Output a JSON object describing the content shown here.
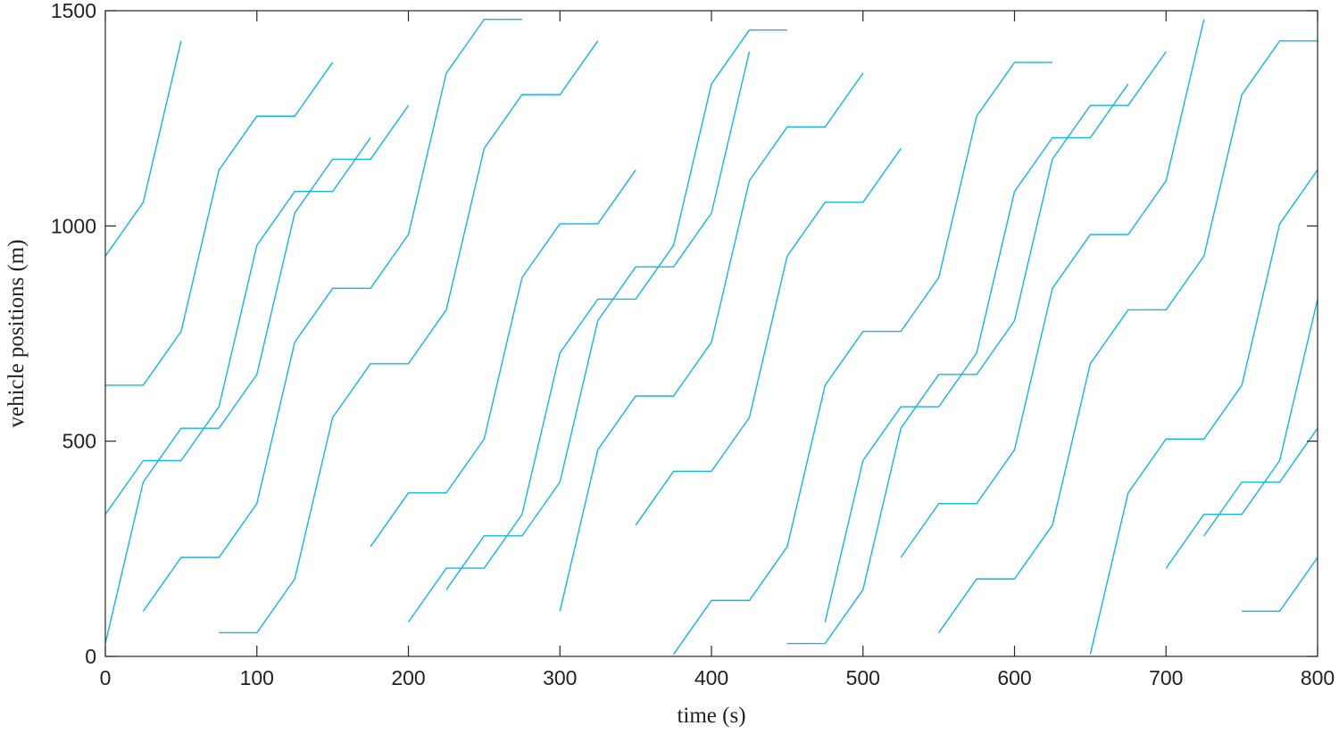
{
  "chart_data": {
    "type": "line",
    "xlabel": "time (s)",
    "ylabel": "vehicle positions (m)",
    "xlim": [
      0,
      800
    ],
    "ylim": [
      0,
      1500
    ],
    "xticks": [
      0,
      100,
      200,
      300,
      400,
      500,
      600,
      700,
      800
    ],
    "yticks": [
      0,
      500,
      1000,
      1500
    ],
    "color": "#16b4e2",
    "series": [
      {
        "x": [
          0,
          25,
          50,
          75,
          100,
          125,
          150,
          175,
          200
        ],
        "values": [
          30,
          405,
          530,
          530,
          655,
          1030,
          1155,
          1155,
          1280
        ]
      },
      {
        "x": [
          225,
          250,
          275,
          300,
          325,
          350,
          375,
          400,
          425
        ],
        "values": [
          155,
          280,
          280,
          405,
          780,
          905,
          905,
          1030,
          1405
        ]
      },
      {
        "x": [
          450,
          475,
          500,
          525,
          550,
          575,
          600,
          625,
          650,
          675,
          700
        ],
        "values": [
          30,
          30,
          155,
          530,
          655,
          655,
          780,
          1155,
          1280,
          1280,
          1405
        ]
      },
      {
        "x": [
          725,
          750,
          775,
          800
        ],
        "values": [
          280,
          405,
          405,
          530
        ]
      },
      {
        "x": [
          0,
          25,
          50,
          75,
          100,
          125,
          150,
          175
        ],
        "values": [
          330,
          455,
          455,
          580,
          955,
          1080,
          1080,
          1205
        ]
      },
      {
        "x": [
          200,
          225,
          250,
          275,
          300,
          325,
          350,
          375,
          400,
          425,
          450
        ],
        "values": [
          80,
          205,
          205,
          330,
          705,
          830,
          830,
          955,
          1330,
          1455,
          1455
        ]
      },
      {
        "x": [
          475,
          500,
          525,
          550,
          575,
          600,
          625,
          650,
          675
        ],
        "values": [
          80,
          455,
          580,
          580,
          705,
          1080,
          1205,
          1205,
          1330
        ]
      },
      {
        "x": [
          700,
          725,
          750,
          775,
          800
        ],
        "values": [
          205,
          330,
          330,
          455,
          830
        ]
      },
      {
        "x": [
          0,
          25,
          50,
          75,
          100,
          125,
          150
        ],
        "values": [
          630,
          630,
          755,
          1130,
          1255,
          1255,
          1380
        ]
      },
      {
        "x": [
          175,
          200,
          225,
          250,
          275,
          300,
          325,
          350
        ],
        "values": [
          255,
          380,
          380,
          505,
          880,
          1005,
          1005,
          1130
        ]
      },
      {
        "x": [
          375,
          400,
          425,
          450,
          475,
          500,
          525,
          550,
          575,
          600,
          625
        ],
        "values": [
          5,
          130,
          130,
          255,
          630,
          755,
          755,
          880,
          1255,
          1380,
          1380
        ]
      },
      {
        "x": [
          650,
          675,
          700,
          725,
          750,
          775,
          800
        ],
        "values": [
          5,
          380,
          505,
          505,
          630,
          1005,
          1130
        ]
      },
      {
        "x": [
          0,
          25,
          50
        ],
        "values": [
          930,
          1055,
          1430
        ]
      },
      {
        "x": [
          75,
          100,
          125,
          150,
          175,
          200,
          225,
          250,
          275,
          300,
          325
        ],
        "values": [
          55,
          55,
          180,
          555,
          680,
          680,
          805,
          1180,
          1305,
          1305,
          1430
        ]
      },
      {
        "x": [
          350,
          375,
          400,
          425,
          450,
          475,
          500,
          525
        ],
        "values": [
          305,
          430,
          430,
          555,
          930,
          1055,
          1055,
          1180
        ]
      },
      {
        "x": [
          550,
          575,
          600,
          625,
          650,
          675,
          700,
          725,
          750,
          775,
          800
        ],
        "values": [
          55,
          180,
          180,
          305,
          680,
          805,
          805,
          930,
          1305,
          1430,
          1430
        ]
      },
      {
        "x": [
          25,
          50,
          75,
          100,
          125,
          150,
          175,
          200,
          225,
          250,
          275
        ],
        "values": [
          105,
          230,
          230,
          355,
          730,
          855,
          855,
          980,
          1355,
          1480,
          1480
        ]
      },
      {
        "x": [
          300,
          325,
          350,
          375,
          400,
          425,
          450,
          475,
          500
        ],
        "values": [
          105,
          480,
          605,
          605,
          730,
          1105,
          1230,
          1230,
          1355
        ]
      },
      {
        "x": [
          525,
          550,
          575,
          600,
          625,
          650,
          675,
          700,
          725
        ],
        "values": [
          230,
          355,
          355,
          480,
          855,
          980,
          980,
          1105,
          1480
        ]
      },
      {
        "x": [
          750,
          775,
          800
        ],
        "values": [
          105,
          105,
          230
        ]
      }
    ]
  }
}
